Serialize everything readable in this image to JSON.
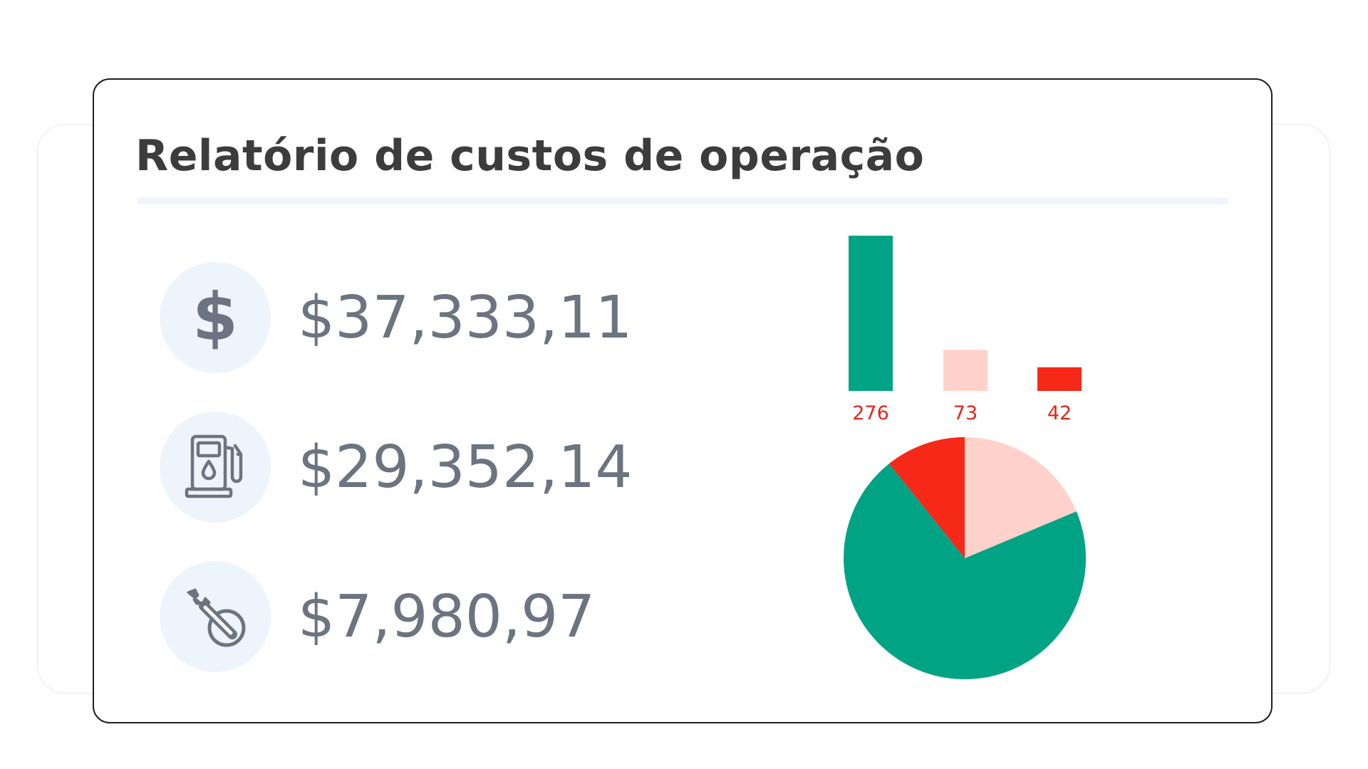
{
  "title": "Relatório de custos de operação",
  "metrics": [
    {
      "icon": "dollar-icon",
      "value": "$37,333,11"
    },
    {
      "icon": "fuel-pump-icon",
      "value": "$29,352,14"
    },
    {
      "icon": "wrench-icon",
      "value": "$7,980,97"
    }
  ],
  "icons": {
    "dollar_glyph": "$"
  },
  "colors": {
    "title": "#3c3c3c",
    "metric_text": "#6b7480",
    "icon_bg": "#eef4fc",
    "green": "#00a383",
    "pink": "#ffd1cb",
    "red": "#f62817",
    "label": "#e5261a"
  },
  "chart_data": [
    {
      "type": "bar",
      "categories": [
        "",
        "",
        ""
      ],
      "values": [
        276,
        73,
        42
      ],
      "value_labels": [
        "276",
        "73",
        "42"
      ],
      "bar_colors": [
        "#00a383",
        "#ffd1cb",
        "#f62817"
      ],
      "title": "",
      "xlabel": "",
      "ylabel": "",
      "grid": false,
      "legend": "none"
    },
    {
      "type": "pie",
      "values": [
        276,
        73,
        42
      ],
      "slice_colors": [
        "#00a383",
        "#ffd1cb",
        "#f62817"
      ],
      "title": "",
      "legend": "none"
    }
  ]
}
